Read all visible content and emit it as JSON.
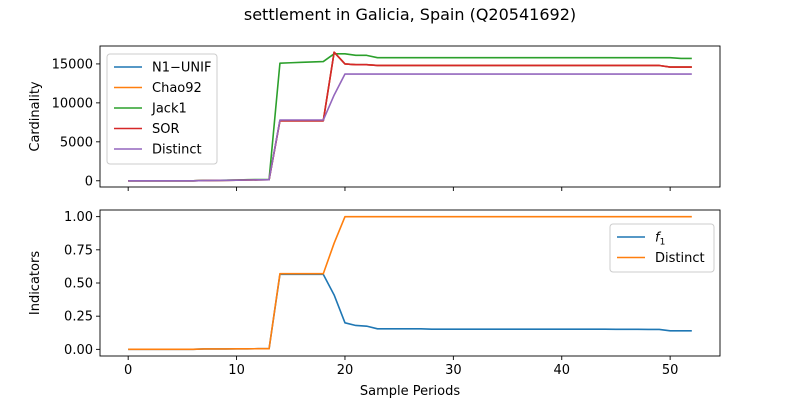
{
  "figure": {
    "title": "settlement in Galicia, Spain (Q20541692)"
  },
  "chart_data": [
    {
      "type": "line",
      "xlabel": "",
      "ylabel": "Cardinality",
      "xlim": [
        -2.6,
        54.6
      ],
      "ylim": [
        -800,
        17300
      ],
      "xticks": [
        0,
        10,
        20,
        30,
        40,
        50
      ],
      "show_xtick_labels": false,
      "yticks": [
        0,
        5000,
        10000,
        15000
      ],
      "ytick_labels": [
        "0",
        "5000",
        "10000",
        "15000"
      ],
      "legend_position": "upper-left",
      "series": [
        {
          "name": "N1−UNIF",
          "color": "#1f77b4",
          "x": [
            0,
            1,
            2,
            3,
            4,
            5,
            6,
            7,
            8,
            9,
            10,
            11,
            12,
            13,
            14,
            15,
            16,
            17,
            18,
            19,
            20,
            21,
            22,
            23,
            24,
            25,
            26,
            27,
            28,
            29,
            30,
            31,
            32,
            33,
            34,
            35,
            36,
            37,
            38,
            39,
            40,
            41,
            42,
            43,
            44,
            45,
            46,
            47,
            48,
            49,
            50,
            51,
            52
          ],
          "y": [
            0,
            0,
            0,
            0,
            0,
            0,
            0,
            30,
            40,
            60,
            80,
            100,
            120,
            130,
            7700,
            7700,
            7700,
            7700,
            7700,
            16500,
            15000,
            14900,
            14900,
            14800,
            14800,
            14800,
            14800,
            14800,
            14800,
            14800,
            14800,
            14800,
            14800,
            14800,
            14800,
            14800,
            14800,
            14800,
            14800,
            14800,
            14800,
            14800,
            14800,
            14800,
            14800,
            14800,
            14800,
            14800,
            14800,
            14800,
            14600,
            14600,
            14600
          ]
        },
        {
          "name": "Chao92",
          "color": "#ff7f0e",
          "x": [
            0,
            1,
            2,
            3,
            4,
            5,
            6,
            7,
            8,
            9,
            10,
            11,
            12,
            13,
            14,
            15,
            16,
            17,
            18,
            19,
            20,
            21,
            22,
            23,
            24,
            25,
            26,
            27,
            28,
            29,
            30,
            31,
            32,
            33,
            34,
            35,
            36,
            37,
            38,
            39,
            40,
            41,
            42,
            43,
            44,
            45,
            46,
            47,
            48,
            49,
            50,
            51,
            52
          ],
          "y": [
            0,
            0,
            0,
            0,
            0,
            0,
            0,
            30,
            40,
            60,
            80,
            100,
            120,
            130,
            7700,
            7700,
            7700,
            7700,
            7700,
            16500,
            15000,
            14900,
            14900,
            14800,
            14800,
            14800,
            14800,
            14800,
            14800,
            14800,
            14800,
            14800,
            14800,
            14800,
            14800,
            14800,
            14800,
            14800,
            14800,
            14800,
            14800,
            14800,
            14800,
            14800,
            14800,
            14800,
            14800,
            14800,
            14800,
            14800,
            14600,
            14600,
            14600
          ]
        },
        {
          "name": "Jack1",
          "color": "#2ca02c",
          "x": [
            0,
            1,
            2,
            3,
            4,
            5,
            6,
            7,
            8,
            9,
            10,
            11,
            12,
            13,
            14,
            15,
            16,
            17,
            18,
            19,
            20,
            21,
            22,
            23,
            24,
            25,
            26,
            27,
            28,
            29,
            30,
            31,
            32,
            33,
            34,
            35,
            36,
            37,
            38,
            39,
            40,
            41,
            42,
            43,
            44,
            45,
            46,
            47,
            48,
            49,
            50,
            51,
            52
          ],
          "y": [
            0,
            0,
            0,
            0,
            0,
            0,
            0,
            40,
            50,
            80,
            100,
            140,
            160,
            180,
            15100,
            15150,
            15200,
            15250,
            15300,
            16300,
            16300,
            16100,
            16100,
            15800,
            15800,
            15800,
            15800,
            15800,
            15800,
            15800,
            15800,
            15800,
            15800,
            15800,
            15800,
            15800,
            15800,
            15800,
            15800,
            15800,
            15800,
            15800,
            15800,
            15800,
            15800,
            15800,
            15800,
            15800,
            15800,
            15800,
            15800,
            15700,
            15700
          ]
        },
        {
          "name": "SOR",
          "color": "#d62728",
          "x": [
            0,
            1,
            2,
            3,
            4,
            5,
            6,
            7,
            8,
            9,
            10,
            11,
            12,
            13,
            14,
            15,
            16,
            17,
            18,
            19,
            20,
            21,
            22,
            23,
            24,
            25,
            26,
            27,
            28,
            29,
            30,
            31,
            32,
            33,
            34,
            35,
            36,
            37,
            38,
            39,
            40,
            41,
            42,
            43,
            44,
            45,
            46,
            47,
            48,
            49,
            50,
            51,
            52
          ],
          "y": [
            0,
            0,
            0,
            0,
            0,
            0,
            0,
            30,
            40,
            60,
            80,
            100,
            120,
            130,
            7700,
            7700,
            7700,
            7700,
            7700,
            16500,
            15000,
            14900,
            14900,
            14800,
            14800,
            14800,
            14800,
            14800,
            14800,
            14800,
            14800,
            14800,
            14800,
            14800,
            14800,
            14800,
            14800,
            14800,
            14800,
            14800,
            14800,
            14800,
            14800,
            14800,
            14800,
            14800,
            14800,
            14800,
            14800,
            14800,
            14600,
            14600,
            14600
          ]
        },
        {
          "name": "Distinct",
          "color": "#9467bd",
          "x": [
            0,
            1,
            2,
            3,
            4,
            5,
            6,
            7,
            8,
            9,
            10,
            11,
            12,
            13,
            14,
            15,
            16,
            17,
            18,
            19,
            20,
            21,
            22,
            23,
            24,
            25,
            26,
            27,
            28,
            29,
            30,
            31,
            32,
            33,
            34,
            35,
            36,
            37,
            38,
            39,
            40,
            41,
            42,
            43,
            44,
            45,
            46,
            47,
            48,
            49,
            50,
            51,
            52
          ],
          "y": [
            0,
            0,
            0,
            0,
            0,
            0,
            0,
            30,
            40,
            60,
            80,
            100,
            120,
            130,
            7800,
            7800,
            7800,
            7800,
            7800,
            11000,
            13700,
            13700,
            13700,
            13700,
            13700,
            13700,
            13700,
            13700,
            13700,
            13700,
            13700,
            13700,
            13700,
            13700,
            13700,
            13700,
            13700,
            13700,
            13700,
            13700,
            13700,
            13700,
            13700,
            13700,
            13700,
            13700,
            13700,
            13700,
            13700,
            13700,
            13700,
            13700,
            13700
          ]
        }
      ]
    },
    {
      "type": "line",
      "xlabel": "Sample Periods",
      "ylabel": "Indicators",
      "xlim": [
        -2.6,
        54.6
      ],
      "ylim": [
        -0.05,
        1.05
      ],
      "xticks": [
        0,
        10,
        20,
        30,
        40,
        50
      ],
      "xtick_labels": [
        "0",
        "10",
        "20",
        "30",
        "40",
        "50"
      ],
      "show_xtick_labels": true,
      "yticks": [
        0,
        0.25,
        0.5,
        0.75,
        1.0
      ],
      "ytick_labels": [
        "0.00",
        "0.25",
        "0.50",
        "0.75",
        "1.00"
      ],
      "legend_position": "upper-right",
      "series": [
        {
          "name": "f",
          "name_subscript": "1",
          "color": "#1f77b4",
          "x": [
            0,
            1,
            2,
            3,
            4,
            5,
            6,
            7,
            8,
            9,
            10,
            11,
            12,
            13,
            14,
            15,
            16,
            17,
            18,
            19,
            20,
            21,
            22,
            23,
            24,
            25,
            26,
            27,
            28,
            29,
            30,
            31,
            32,
            33,
            34,
            35,
            36,
            37,
            38,
            39,
            40,
            41,
            42,
            43,
            44,
            45,
            46,
            47,
            48,
            49,
            50,
            51,
            52
          ],
          "y": [
            0,
            0,
            0,
            0,
            0,
            0,
            0,
            0.003,
            0.003,
            0.003,
            0.004,
            0.004,
            0.005,
            0.005,
            0.565,
            0.565,
            0.565,
            0.565,
            0.565,
            0.41,
            0.2,
            0.18,
            0.175,
            0.155,
            0.155,
            0.155,
            0.155,
            0.155,
            0.152,
            0.152,
            0.152,
            0.152,
            0.152,
            0.152,
            0.152,
            0.152,
            0.152,
            0.152,
            0.152,
            0.152,
            0.152,
            0.152,
            0.152,
            0.152,
            0.152,
            0.151,
            0.151,
            0.151,
            0.15,
            0.15,
            0.14,
            0.14,
            0.14
          ]
        },
        {
          "name": "Distinct",
          "color": "#ff7f0e",
          "x": [
            0,
            1,
            2,
            3,
            4,
            5,
            6,
            7,
            8,
            9,
            10,
            11,
            12,
            13,
            14,
            15,
            16,
            17,
            18,
            19,
            20,
            21,
            22,
            23,
            24,
            25,
            26,
            27,
            28,
            29,
            30,
            31,
            32,
            33,
            34,
            35,
            36,
            37,
            38,
            39,
            40,
            41,
            42,
            43,
            44,
            45,
            46,
            47,
            48,
            49,
            50,
            51,
            52
          ],
          "y": [
            0,
            0,
            0,
            0,
            0,
            0,
            0,
            0.003,
            0.003,
            0.003,
            0.004,
            0.004,
            0.005,
            0.005,
            0.57,
            0.57,
            0.57,
            0.57,
            0.57,
            0.8,
            1.0,
            1.0,
            1.0,
            1.0,
            1.0,
            1.0,
            1.0,
            1.0,
            1.0,
            1.0,
            1.0,
            1.0,
            1.0,
            1.0,
            1.0,
            1.0,
            1.0,
            1.0,
            1.0,
            1.0,
            1.0,
            1.0,
            1.0,
            1.0,
            1.0,
            1.0,
            1.0,
            1.0,
            1.0,
            1.0,
            1.0,
            1.0,
            1.0
          ]
        }
      ]
    }
  ]
}
